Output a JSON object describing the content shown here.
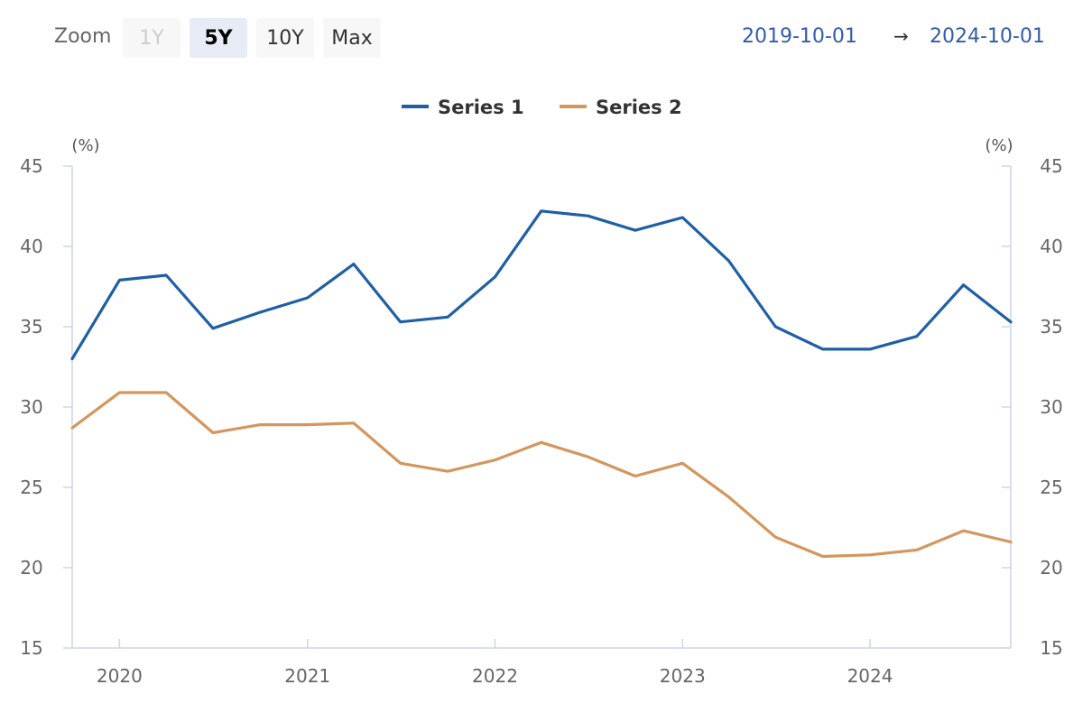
{
  "toolbar": {
    "zoom_label": "Zoom",
    "buttons": [
      {
        "label": "1Y",
        "state": "disabled"
      },
      {
        "label": "5Y",
        "state": "active"
      },
      {
        "label": "10Y",
        "state": "normal"
      },
      {
        "label": "Max",
        "state": "normal"
      }
    ],
    "range_from": "2019-10-01",
    "range_arrow": "→",
    "range_to": "2024-10-01"
  },
  "colors": {
    "series_1": "#1f5fa6",
    "series_2": "#d4965c",
    "axis": "#ccd6eb",
    "range_text": "#335cad"
  },
  "chart_data": {
    "type": "line",
    "x_start": "2019-10-01",
    "x_end": "2024-10-01",
    "x_ticks": [
      "2020",
      "2021",
      "2022",
      "2023",
      "2024"
    ],
    "y_unit_left": "(%)",
    "y_unit_right": "(%)",
    "yticks": [
      15,
      20,
      25,
      30,
      35,
      40,
      45
    ],
    "ylim": [
      15,
      45
    ],
    "legend_position": "top-center",
    "x": [
      "2019-10-01",
      "2020-01-01",
      "2020-04-01",
      "2020-07-01",
      "2020-10-01",
      "2021-01-01",
      "2021-04-01",
      "2021-07-01",
      "2021-10-01",
      "2022-01-01",
      "2022-04-01",
      "2022-07-01",
      "2022-10-01",
      "2023-01-01",
      "2023-04-01",
      "2023-07-01",
      "2023-10-01",
      "2024-01-01",
      "2024-04-01",
      "2024-07-01",
      "2024-10-01"
    ],
    "series": [
      {
        "name": "Series 1",
        "values": [
          33.0,
          37.9,
          38.2,
          34.9,
          35.9,
          36.8,
          38.9,
          35.3,
          35.6,
          38.1,
          42.2,
          41.9,
          41.0,
          41.8,
          39.1,
          35.0,
          33.6,
          33.6,
          34.4,
          37.6,
          35.3
        ]
      },
      {
        "name": "Series 2",
        "values": [
          28.7,
          30.9,
          30.9,
          28.4,
          28.9,
          28.9,
          29.0,
          26.5,
          26.0,
          26.7,
          27.8,
          26.9,
          25.7,
          26.5,
          24.4,
          21.9,
          20.7,
          20.8,
          21.1,
          22.3,
          21.6
        ]
      }
    ]
  }
}
